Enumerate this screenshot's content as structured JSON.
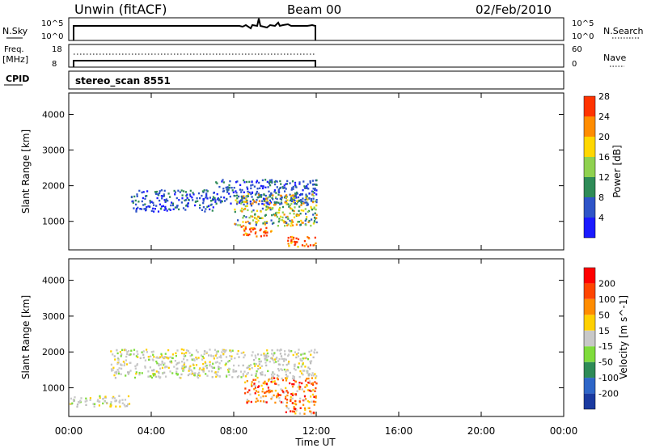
{
  "header": {
    "station": "Unwin (fitACF)",
    "beam": "Beam 00",
    "date": "02/Feb/2010"
  },
  "top_panels": {
    "nsky_label": "N.Sky",
    "nsky_ticks": [
      "10^5",
      "10^0"
    ],
    "nsearch_label": "N.Search",
    "freq_label": "Freq.",
    "freq_unit": "[MHz]",
    "freq_ticks": [
      "18",
      "8"
    ],
    "nave_ticks": [
      "60",
      "0"
    ],
    "nave_label": "Nave",
    "cpid_label": "CPID",
    "cpid_value": "stereo_scan 8551"
  },
  "chart_data": [
    {
      "type": "heatmap",
      "panel": "power",
      "xlabel": "Time UT",
      "ylabel": "Slant Range [km]",
      "x_ticks": [
        "00:00",
        "04:00",
        "08:00",
        "12:00",
        "16:00",
        "20:00",
        "00:00"
      ],
      "y_ticks": [
        "1000",
        "2000",
        "3000",
        "4000"
      ],
      "ylim": [
        200,
        4600
      ],
      "xlim_hours": [
        0,
        24
      ],
      "data_end_hour": 12,
      "colorbar_label": "Power [dB]",
      "colorbar_ticks": [
        "4",
        "8",
        "12",
        "16",
        "20",
        "24",
        "28"
      ],
      "colorbar_colors": [
        "#1a1aff",
        "#2e54c8",
        "#2e8b57",
        "#8fd14f",
        "#ffd700",
        "#ff8c00",
        "#ff3300"
      ],
      "echo_regions": [
        {
          "hours": [
            7.0,
            12.0
          ],
          "range_km": [
            1500,
            2200
          ],
          "level": "low"
        },
        {
          "hours": [
            8.0,
            12.0
          ],
          "range_km": [
            900,
            1800
          ],
          "level": "mid"
        },
        {
          "hours": [
            8.3,
            9.8
          ],
          "range_km": [
            600,
            900
          ],
          "level": "high"
        },
        {
          "hours": [
            10.5,
            12.0
          ],
          "range_km": [
            300,
            600
          ],
          "level": "high"
        },
        {
          "hours": [
            3.0,
            7.0
          ],
          "range_km": [
            1300,
            1900
          ],
          "level": "low"
        }
      ]
    },
    {
      "type": "heatmap",
      "panel": "velocity",
      "xlabel": "Time UT",
      "ylabel": "Slant Range [km]",
      "x_ticks": [
        "00:00",
        "04:00",
        "08:00",
        "12:00",
        "16:00",
        "20:00",
        "00:00"
      ],
      "y_ticks": [
        "1000",
        "2000",
        "3000",
        "4000"
      ],
      "ylim": [
        200,
        4600
      ],
      "xlim_hours": [
        0,
        24
      ],
      "data_end_hour": 12,
      "colorbar_label": "Velocity [m s^-1]",
      "colorbar_ticks": [
        "200",
        "100",
        "50",
        "15",
        "-15",
        "-50",
        "-100",
        "-200"
      ],
      "colorbar_colors": [
        "#1a3aa0",
        "#2e66c8",
        "#2e8b57",
        "#7fdc3c",
        "#c8c8c8",
        "#ffd000",
        "#ff8c00",
        "#ff4500",
        "#ff0000"
      ],
      "echo_regions": [
        {
          "hours": [
            2.0,
            12.0
          ],
          "range_km": [
            1300,
            2100
          ],
          "level": "gray"
        },
        {
          "hours": [
            8.5,
            12.0
          ],
          "range_km": [
            600,
            1300
          ],
          "level": "orange"
        },
        {
          "hours": [
            10.5,
            12.0
          ],
          "range_km": [
            300,
            700
          ],
          "level": "orange"
        },
        {
          "hours": [
            0.0,
            3.0
          ],
          "range_km": [
            500,
            800
          ],
          "level": "gray"
        }
      ]
    }
  ]
}
